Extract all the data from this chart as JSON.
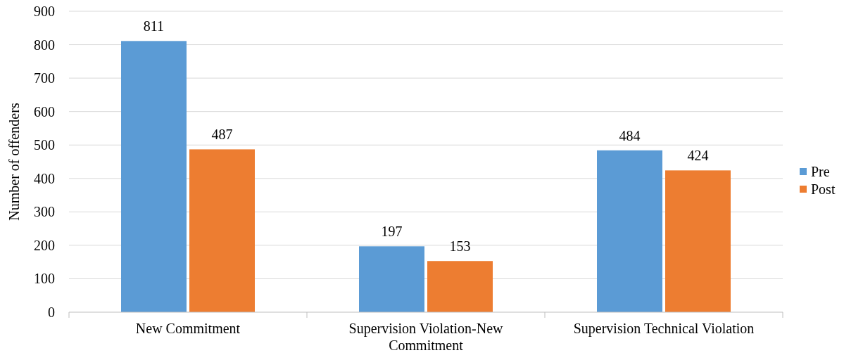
{
  "chart_data": {
    "type": "bar",
    "ylabel": "Number of offenders",
    "categories": [
      "New Commitment",
      "Supervision Violation-New Commitment",
      "Supervision Technical Violation"
    ],
    "series": [
      {
        "name": "Pre",
        "color": "#5b9bd5",
        "values": [
          811,
          197,
          484
        ]
      },
      {
        "name": "Post",
        "color": "#ed7d31",
        "values": [
          487,
          153,
          424
        ]
      }
    ],
    "ylim": [
      0,
      900
    ],
    "yticks": [
      0,
      100,
      200,
      300,
      400,
      500,
      600,
      700,
      800,
      900
    ],
    "grid": "y",
    "legend": "right",
    "data_labels": true
  }
}
